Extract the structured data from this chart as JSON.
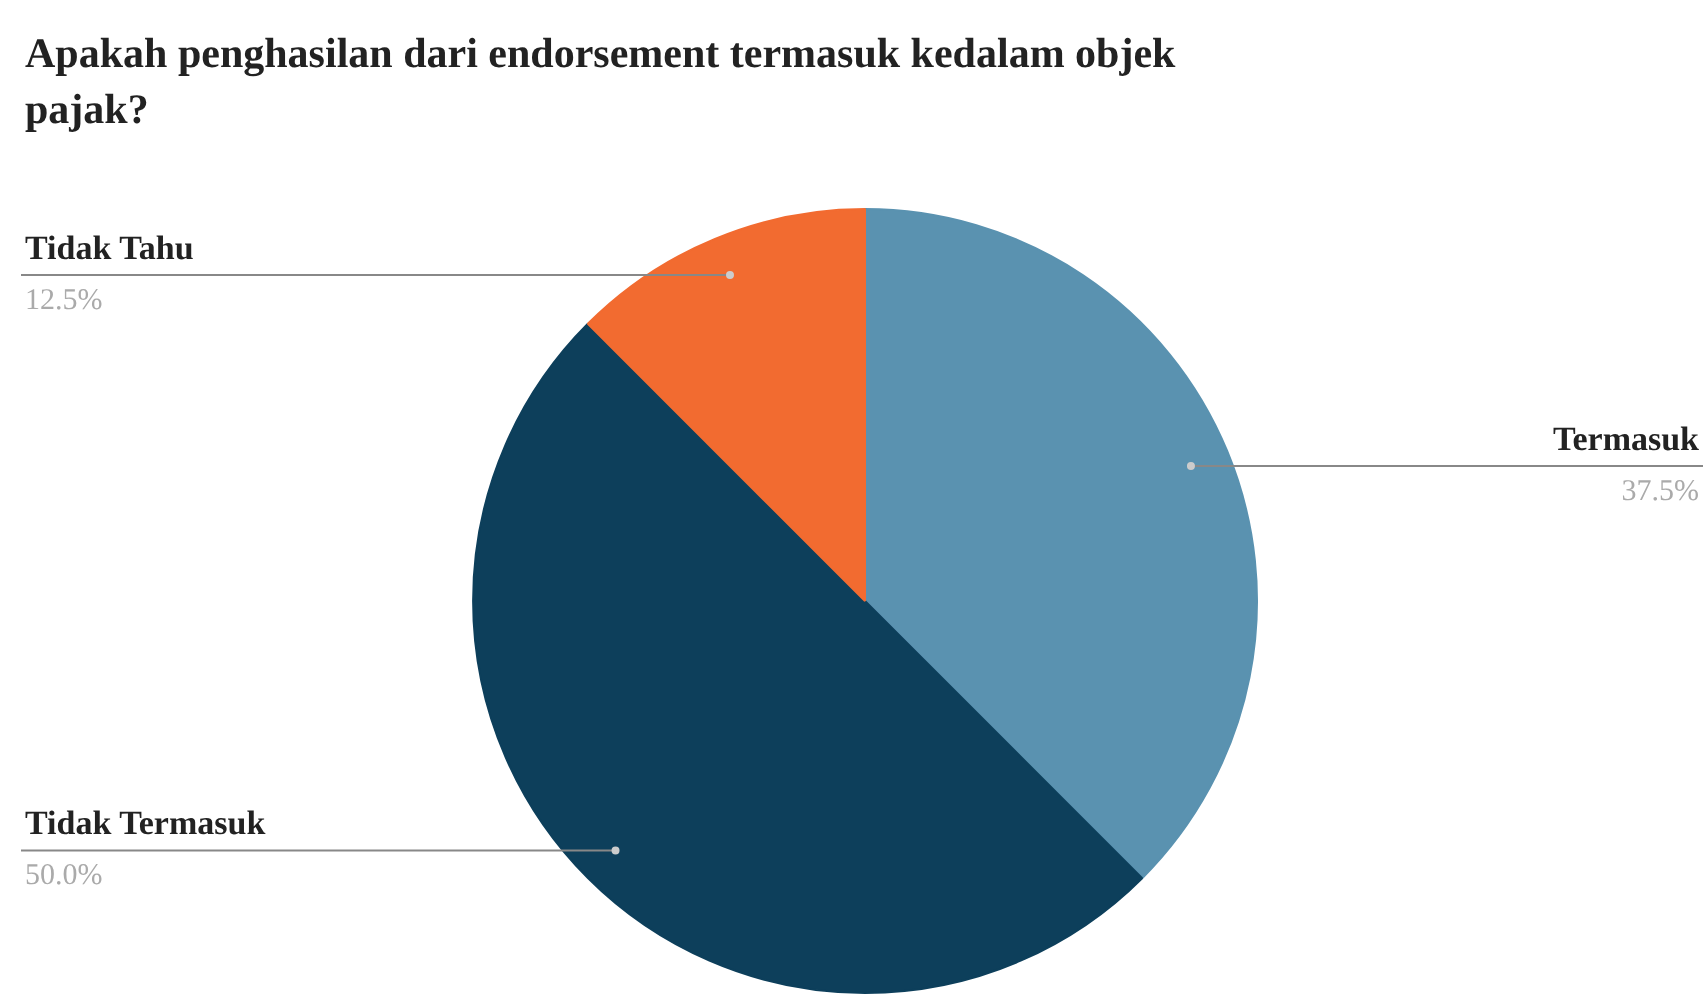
{
  "chart_data": {
    "type": "pie",
    "title": "Apakah penghasilan dari endorsement termasuk kedalam objek pajak?",
    "categories": [
      "Termasuk",
      "Tidak Termasuk",
      "Tidak Tahu"
    ],
    "values": [
      37.5,
      50.0,
      12.5
    ],
    "colors": [
      "#5a92b0",
      "#0d3f5b",
      "#f26b30"
    ],
    "value_labels": [
      "37.5%",
      "50.0%",
      "12.5%"
    ]
  }
}
